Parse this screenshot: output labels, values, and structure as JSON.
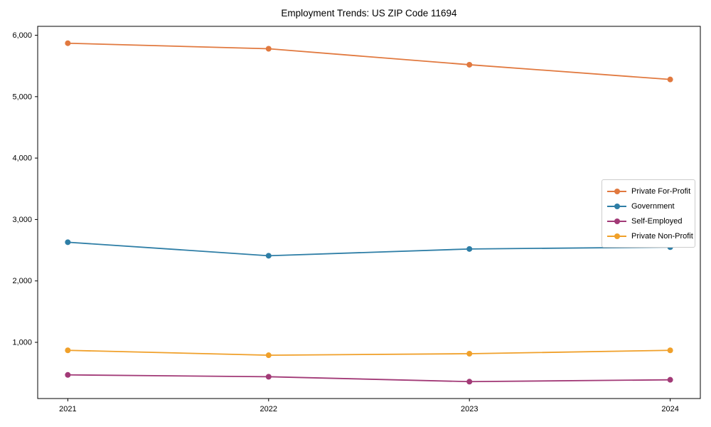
{
  "figure": {
    "title": "Employment Trends: US ZIP Code 11694",
    "background_color": "#ffffff",
    "axis_color": "#000000"
  },
  "chart_data": {
    "type": "line",
    "title": "Employment Trends: US ZIP Code 11694",
    "categories": [
      "2021",
      "2022",
      "2023",
      "2024"
    ],
    "series": [
      {
        "name": "Private For-Profit",
        "color": "#e1793f",
        "values": [
          5870,
          5780,
          5520,
          5280
        ]
      },
      {
        "name": "Government",
        "color": "#2e7ea6",
        "values": [
          2630,
          2410,
          2520,
          2550
        ]
      },
      {
        "name": "Self-Employed",
        "color": "#a23a77",
        "values": [
          470,
          440,
          360,
          390
        ]
      },
      {
        "name": "Private Non-Profit",
        "color": "#f0a02a",
        "values": [
          870,
          790,
          815,
          870
        ]
      }
    ],
    "xlabel": "",
    "ylabel": "",
    "ylim": [
      85,
      6145
    ],
    "yticks": [
      1000,
      2000,
      3000,
      4000,
      5000,
      6000
    ],
    "ytick_labels": [
      "1,000",
      "2,000",
      "3,000",
      "4,000",
      "5,000",
      "6,000"
    ],
    "grid": false,
    "legend_position": "right",
    "marker": "circle",
    "marker_size": 8,
    "line_width": 1.8
  }
}
